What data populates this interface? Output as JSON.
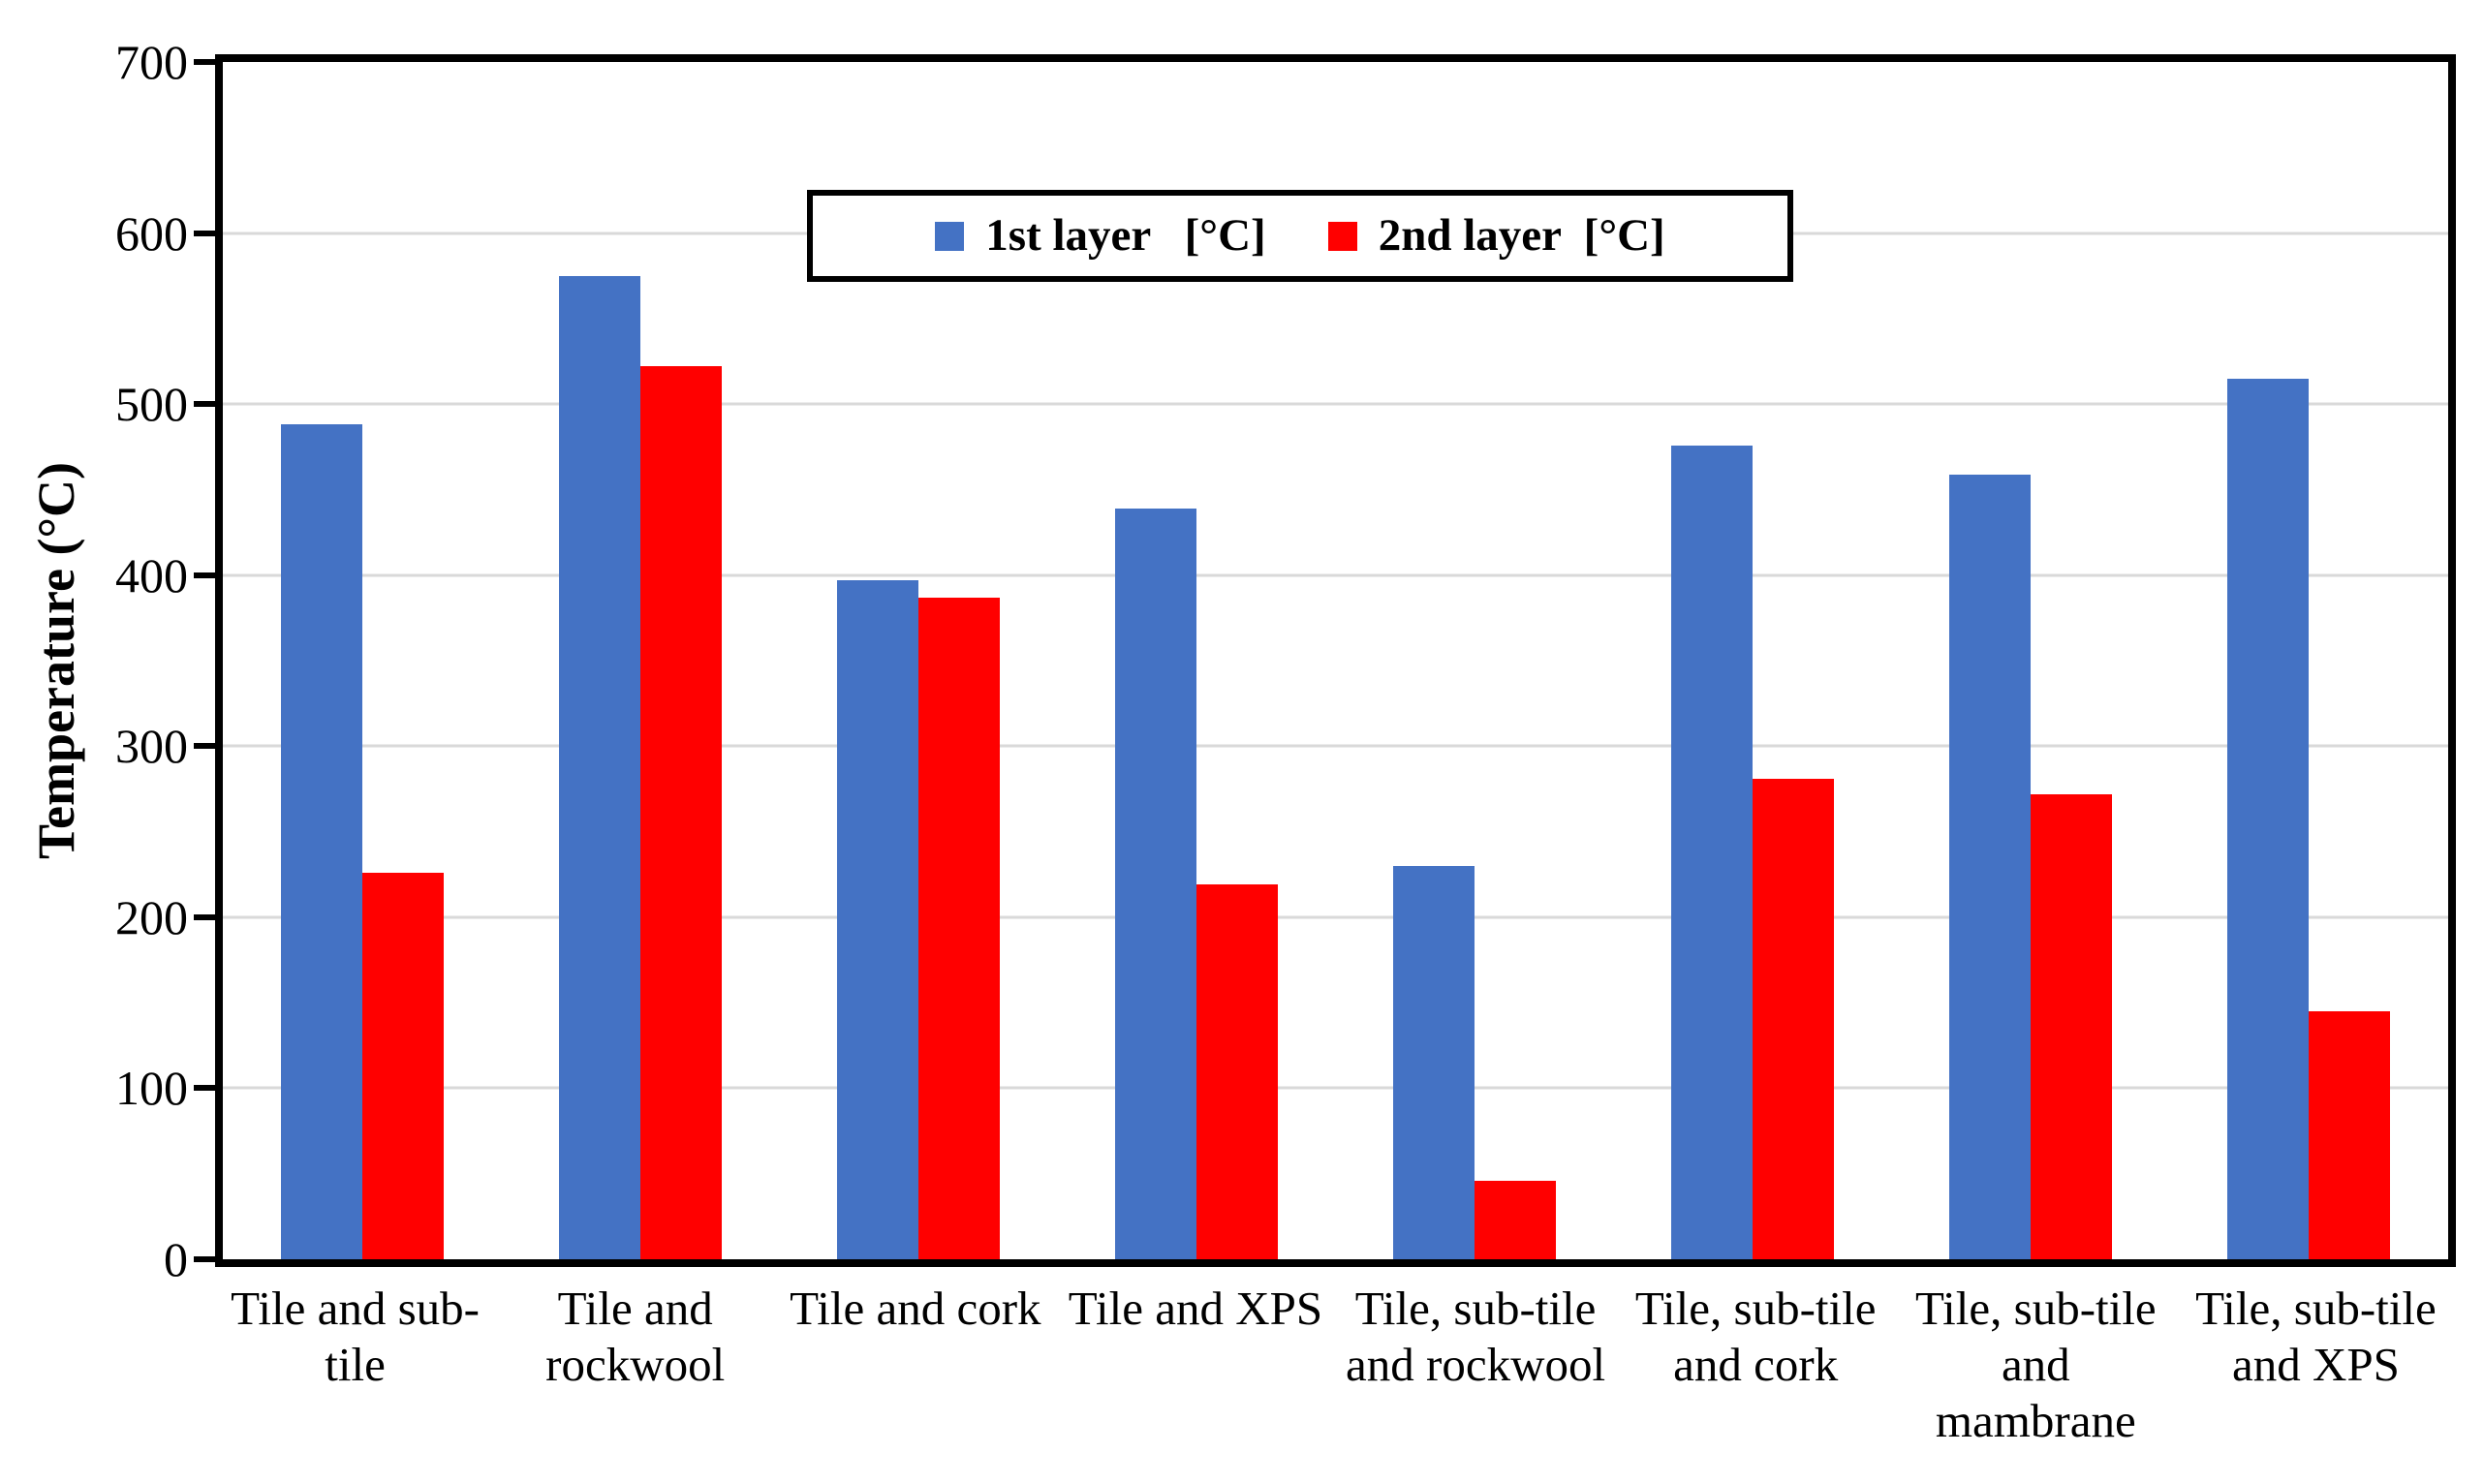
{
  "chart_data": {
    "type": "bar",
    "title": "",
    "xlabel": "",
    "ylabel": "Temperature (°C)",
    "ylim": [
      0,
      700
    ],
    "ytick_interval": 100,
    "yticks": [
      "0",
      "100",
      "200",
      "300",
      "400",
      "500",
      "600",
      "700"
    ],
    "grid": true,
    "gridline_color": "#d9d9d9",
    "legend_position": "top-center",
    "categories": [
      "Tile and sub-\ntile",
      "Tile and\nrockwool",
      "Tile and cork",
      "Tile and XPS",
      "Tile, sub-tile\nand rockwool",
      "Tile, sub-tile\nand cork",
      "Tile, sub-tile\nand\nmambrane",
      "Tile, sub-tile\nand XPS"
    ],
    "series": [
      {
        "name": "1st layer   [°C]",
        "color": "#4472c4",
        "values": [
          488,
          575,
          397,
          439,
          230,
          476,
          459,
          515
        ]
      },
      {
        "name": "2nd layer  [°C]",
        "color": "#ff0000",
        "values": [
          226,
          522,
          387,
          219,
          46,
          281,
          272,
          145
        ]
      }
    ]
  }
}
